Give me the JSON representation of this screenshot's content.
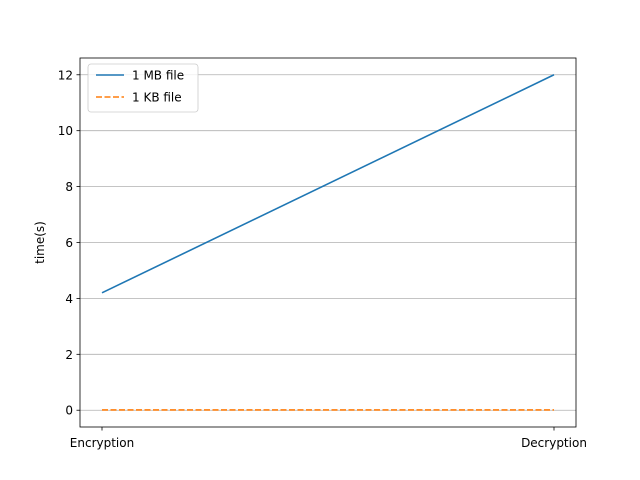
{
  "chart_data": {
    "type": "line",
    "categories": [
      "Encryption",
      "Decryption"
    ],
    "series": [
      {
        "name": "1 MB file",
        "values": [
          4.2,
          12.0
        ],
        "color": "#1f77b4",
        "style": "solid"
      },
      {
        "name": "1 KB file",
        "values": [
          0.01,
          0.01
        ],
        "color": "#ff7f0e",
        "style": "dashed"
      }
    ],
    "ylabel": "time(s)",
    "xlabel": "",
    "ylim": [
      -0.6,
      12.6
    ],
    "yticks": [
      0,
      2,
      4,
      6,
      8,
      10,
      12
    ],
    "grid": "y-major",
    "legend_position": "upper-left"
  }
}
